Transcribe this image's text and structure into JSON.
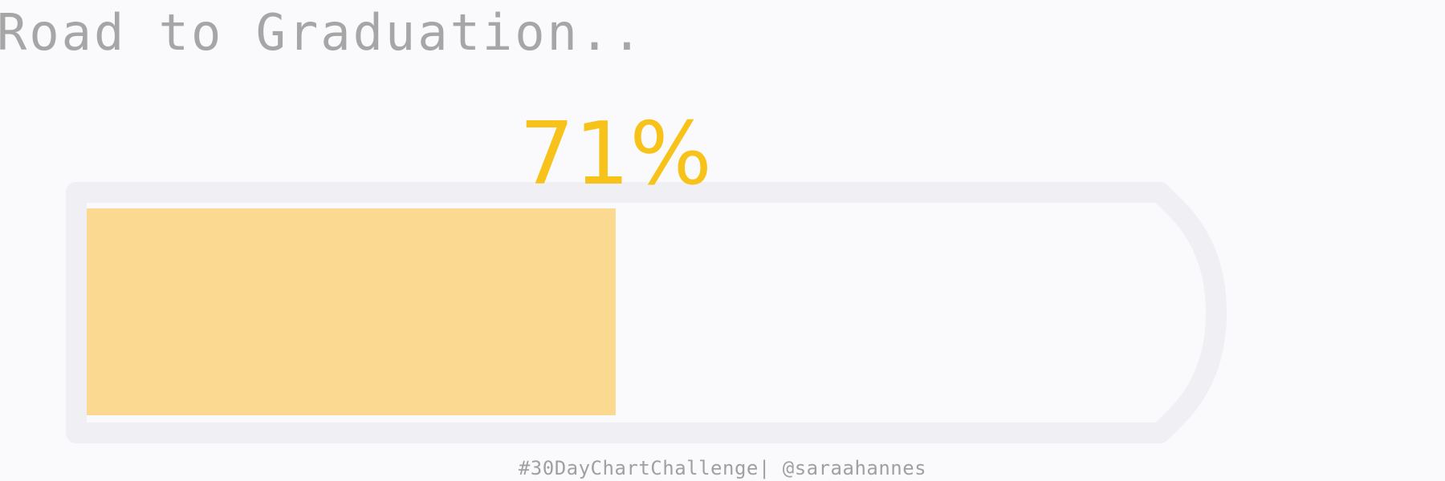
{
  "title": "Road to Graduation..",
  "caption": "#30DayChartChallenge| @saraahannes",
  "chart_data": {
    "type": "bar",
    "orientation": "horizontal",
    "values": [
      0.71
    ],
    "label": "71%",
    "xlim": [
      0,
      1
    ],
    "colors": {
      "fill": "#fbd991",
      "label": "#f7c31a",
      "outline": "#f0f0f4",
      "background": "#fafafc"
    }
  }
}
